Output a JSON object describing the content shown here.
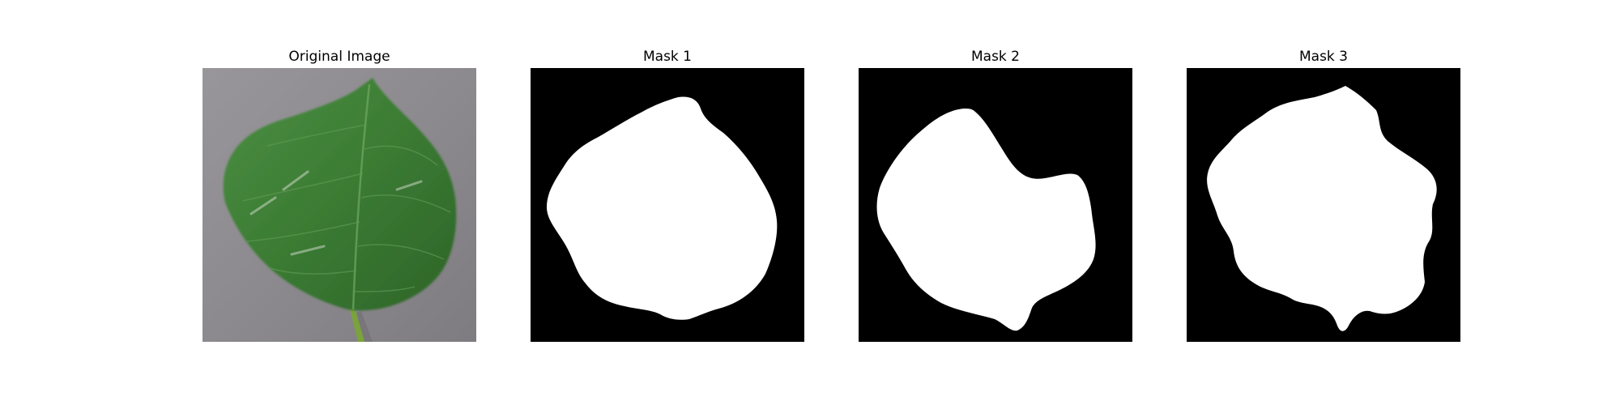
{
  "figure": {
    "panels": [
      {
        "title": "Original Image"
      },
      {
        "title": "Mask 1"
      },
      {
        "title": "Mask 2"
      },
      {
        "title": "Mask 3"
      }
    ]
  },
  "colors": {
    "background": "#ffffff",
    "mask_background": "#000000",
    "mask_foreground": "#ffffff",
    "photo_backdrop": "#8d8b8e",
    "leaf_green": "#3d7d34",
    "leaf_dark": "#2d6228",
    "stem": "#7aa33b"
  }
}
